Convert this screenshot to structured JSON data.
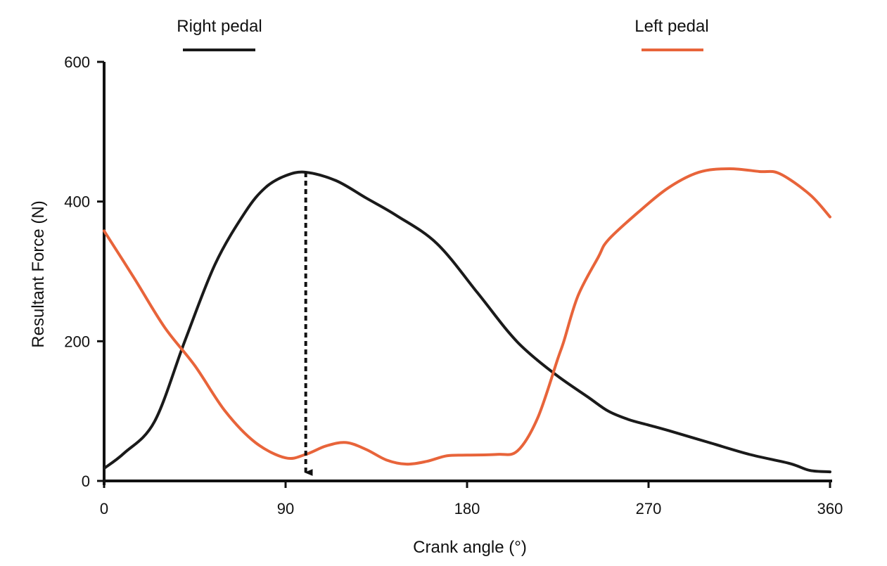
{
  "chart_data": {
    "type": "line",
    "title": "",
    "xlabel": "Crank angle (°)",
    "ylabel": "Resultant Force (N)",
    "xlim": [
      0,
      360
    ],
    "ylim": [
      0,
      600
    ],
    "xticks": [
      "0",
      "90",
      "180",
      "270",
      "360"
    ],
    "yticks": [
      "0",
      "200",
      "400",
      "600"
    ],
    "grid": false,
    "legend": "top",
    "series": [
      {
        "name": "Right pedal",
        "color": "#1a1a1a",
        "x": [
          0,
          10,
          25,
          40,
          55,
          70,
          80,
          90,
          100,
          115,
          130,
          145,
          165,
          185,
          200,
          210,
          225,
          240,
          250,
          260,
          270,
          280,
          300,
          320,
          340,
          350,
          360
        ],
        "y": [
          18,
          40,
          85,
          200,
          310,
          385,
          420,
          437,
          442,
          430,
          405,
          380,
          340,
          270,
          215,
          185,
          150,
          120,
          100,
          88,
          80,
          72,
          55,
          38,
          25,
          15,
          13
        ]
      },
      {
        "name": "Left pedal",
        "color": "#e8643a",
        "x": [
          0,
          15,
          30,
          45,
          60,
          75,
          90,
          100,
          110,
          120,
          130,
          140,
          150,
          160,
          170,
          180,
          195,
          205,
          215,
          225,
          228,
          235,
          245,
          250,
          265,
          280,
          295,
          310,
          325,
          335,
          350,
          360
        ],
        "y": [
          358,
          290,
          220,
          165,
          100,
          55,
          33,
          38,
          50,
          55,
          45,
          30,
          24,
          28,
          36,
          37,
          38,
          43,
          90,
          175,
          200,
          265,
          320,
          345,
          385,
          420,
          442,
          447,
          443,
          440,
          410,
          378
        ]
      }
    ],
    "annotations": [
      {
        "type": "dashed-arrow",
        "x": 100,
        "y_from": 442,
        "y_to": 0
      }
    ]
  }
}
